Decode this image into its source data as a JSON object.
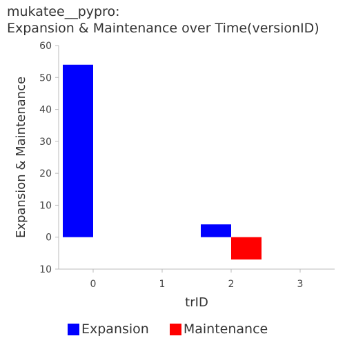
{
  "chart_data": {
    "type": "bar",
    "title": "mukatee__pypro:",
    "subtitle": "Expansion & Maintenance over Time(versionID)",
    "xlabel": "trID",
    "ylabel": "Expansion & Maintenance",
    "categories": [
      "0",
      "1",
      "2",
      "3"
    ],
    "series": [
      {
        "name": "Expansion",
        "color": "#0000ff",
        "values": [
          54,
          0,
          4,
          0
        ]
      },
      {
        "name": "Maintenance",
        "color": "#ff0000",
        "values": [
          0,
          0,
          -7,
          0
        ]
      }
    ],
    "ylim": [
      -10,
      60
    ],
    "yticks": [
      60,
      50,
      40,
      30,
      20,
      10,
      0,
      -10
    ],
    "ytick_labels": [
      "60",
      "50",
      "40",
      "30",
      "20",
      "10",
      "0",
      "10"
    ],
    "grid": false,
    "legend": "bottom"
  }
}
